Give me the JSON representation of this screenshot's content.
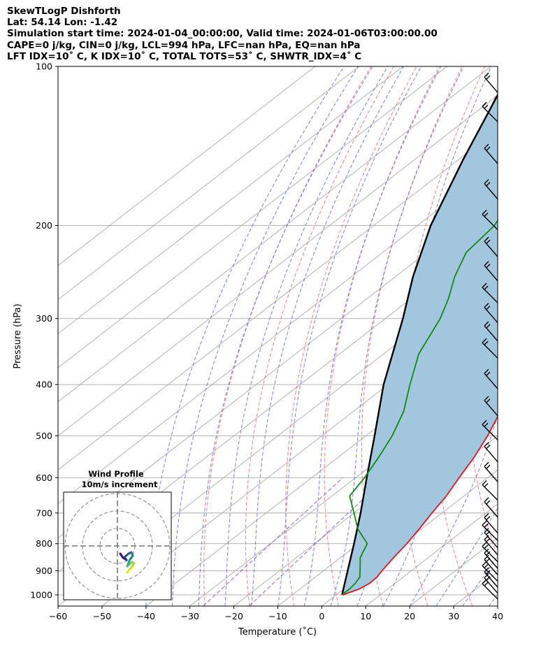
{
  "header": {
    "line1": "SkewTLogP Dishforth",
    "line2": "Lat: 54.14   Lon: -1.42",
    "line3": "Simulation start time: 2024-01-04_00:00:00, Valid time: 2024-01-06T03:00:00.00",
    "line4": "CAPE=0 j/kg, CIN=0 j/kg, LCL=994 hPa, LFC=nan hPa, EQ=nan hPa",
    "line5": "LFT IDX=10˚ C, K IDX=10˚ C, TOTAL TOTS=53˚ C, SHWTR_IDX=4˚ C"
  },
  "colors": {
    "temperature": "#e8141c",
    "dewpoint": "#108a10",
    "parcel": "#000000",
    "cape_fill": "#a3c6df",
    "dry_adiabat": "#f06a6a",
    "moist_adiabat": "#5b68ee",
    "mixing_ratio": "#9945c9",
    "isotherm": "#aaaaaa"
  },
  "chart_data": {
    "type": "line",
    "xlabel": "Temperature (˚C)",
    "ylabel": "Pressure (hPa)",
    "xlim": [
      -60,
      40
    ],
    "ylim": [
      1050,
      100
    ],
    "y_scale": "log",
    "x_ticks": [
      "−60",
      "−50",
      "−40",
      "−30",
      "−20",
      "−10",
      "0",
      "10",
      "20",
      "30",
      "40"
    ],
    "y_ticks": [
      "100",
      "200",
      "300",
      "400",
      "500",
      "600",
      "700",
      "800",
      "900",
      "1000"
    ],
    "grid": true,
    "series": [
      {
        "kind": "temperature",
        "points": [
          [
            1000,
            1.4
          ],
          [
            975,
            3.5
          ],
          [
            950,
            4.2
          ],
          [
            925,
            4.0
          ],
          [
            900,
            3.3
          ],
          [
            850,
            2.1
          ],
          [
            800,
            1.0
          ],
          [
            750,
            -0.5
          ],
          [
            700,
            -2.3
          ],
          [
            650,
            -4.0
          ],
          [
            600,
            -6.5
          ],
          [
            550,
            -9.0
          ],
          [
            500,
            -12.3
          ],
          [
            450,
            -16.5
          ],
          [
            400,
            -21.0
          ],
          [
            350,
            -26.0
          ],
          [
            300,
            -33.0
          ],
          [
            275,
            -37.5
          ],
          [
            250,
            -42.5
          ],
          [
            225,
            -45.0
          ],
          [
            200,
            -48.5
          ],
          [
            175,
            -51.5
          ],
          [
            150,
            -52.8
          ],
          [
            125,
            -54.0
          ],
          [
            100,
            -55.0
          ]
        ]
      },
      {
        "kind": "dewpoint",
        "points": [
          [
            1000,
            1.2
          ],
          [
            975,
            1.3
          ],
          [
            950,
            0.9
          ],
          [
            925,
            0.1
          ],
          [
            900,
            -1.7
          ],
          [
            850,
            -5.5
          ],
          [
            800,
            -8.0
          ],
          [
            750,
            -14.5
          ],
          [
            700,
            -20.0
          ],
          [
            650,
            -26.0
          ],
          [
            600,
            -28.0
          ],
          [
            550,
            -30.7
          ],
          [
            500,
            -34.0
          ],
          [
            450,
            -38.5
          ],
          [
            400,
            -45.0
          ],
          [
            350,
            -52.0
          ],
          [
            300,
            -57.5
          ],
          [
            275,
            -61.5
          ],
          [
            250,
            -66.5
          ],
          [
            225,
            -71.0
          ],
          [
            200,
            -72.5
          ],
          [
            175,
            -77.0
          ],
          [
            150,
            -81.0
          ],
          [
            125,
            -84.0
          ],
          [
            100,
            -86.0
          ]
        ]
      },
      {
        "kind": "parcel",
        "points": [
          [
            1000,
            1.3
          ],
          [
            900,
            -4.5
          ],
          [
            800,
            -11.0
          ],
          [
            700,
            -18.5
          ],
          [
            600,
            -27.5
          ],
          [
            500,
            -38.0
          ],
          [
            400,
            -51.0
          ],
          [
            300,
            -66.0
          ],
          [
            250,
            -76.0
          ],
          [
            200,
            -87.0
          ],
          [
            150,
            -99.0
          ],
          [
            100,
            -115.0
          ]
        ]
      }
    ],
    "cape_shading": "between temperature and parcel",
    "wind_barbs": {
      "pressure_levels_hPa": [
        1000,
        975,
        950,
        925,
        900,
        875,
        850,
        825,
        800,
        775,
        750,
        700,
        650,
        600,
        550,
        500,
        450,
        400,
        350,
        325,
        300,
        275,
        250,
        225,
        200,
        175,
        150,
        125,
        110
      ]
    },
    "hodograph": {
      "title": "Wind Profile",
      "subtitle": "10m/s increment"
    }
  }
}
